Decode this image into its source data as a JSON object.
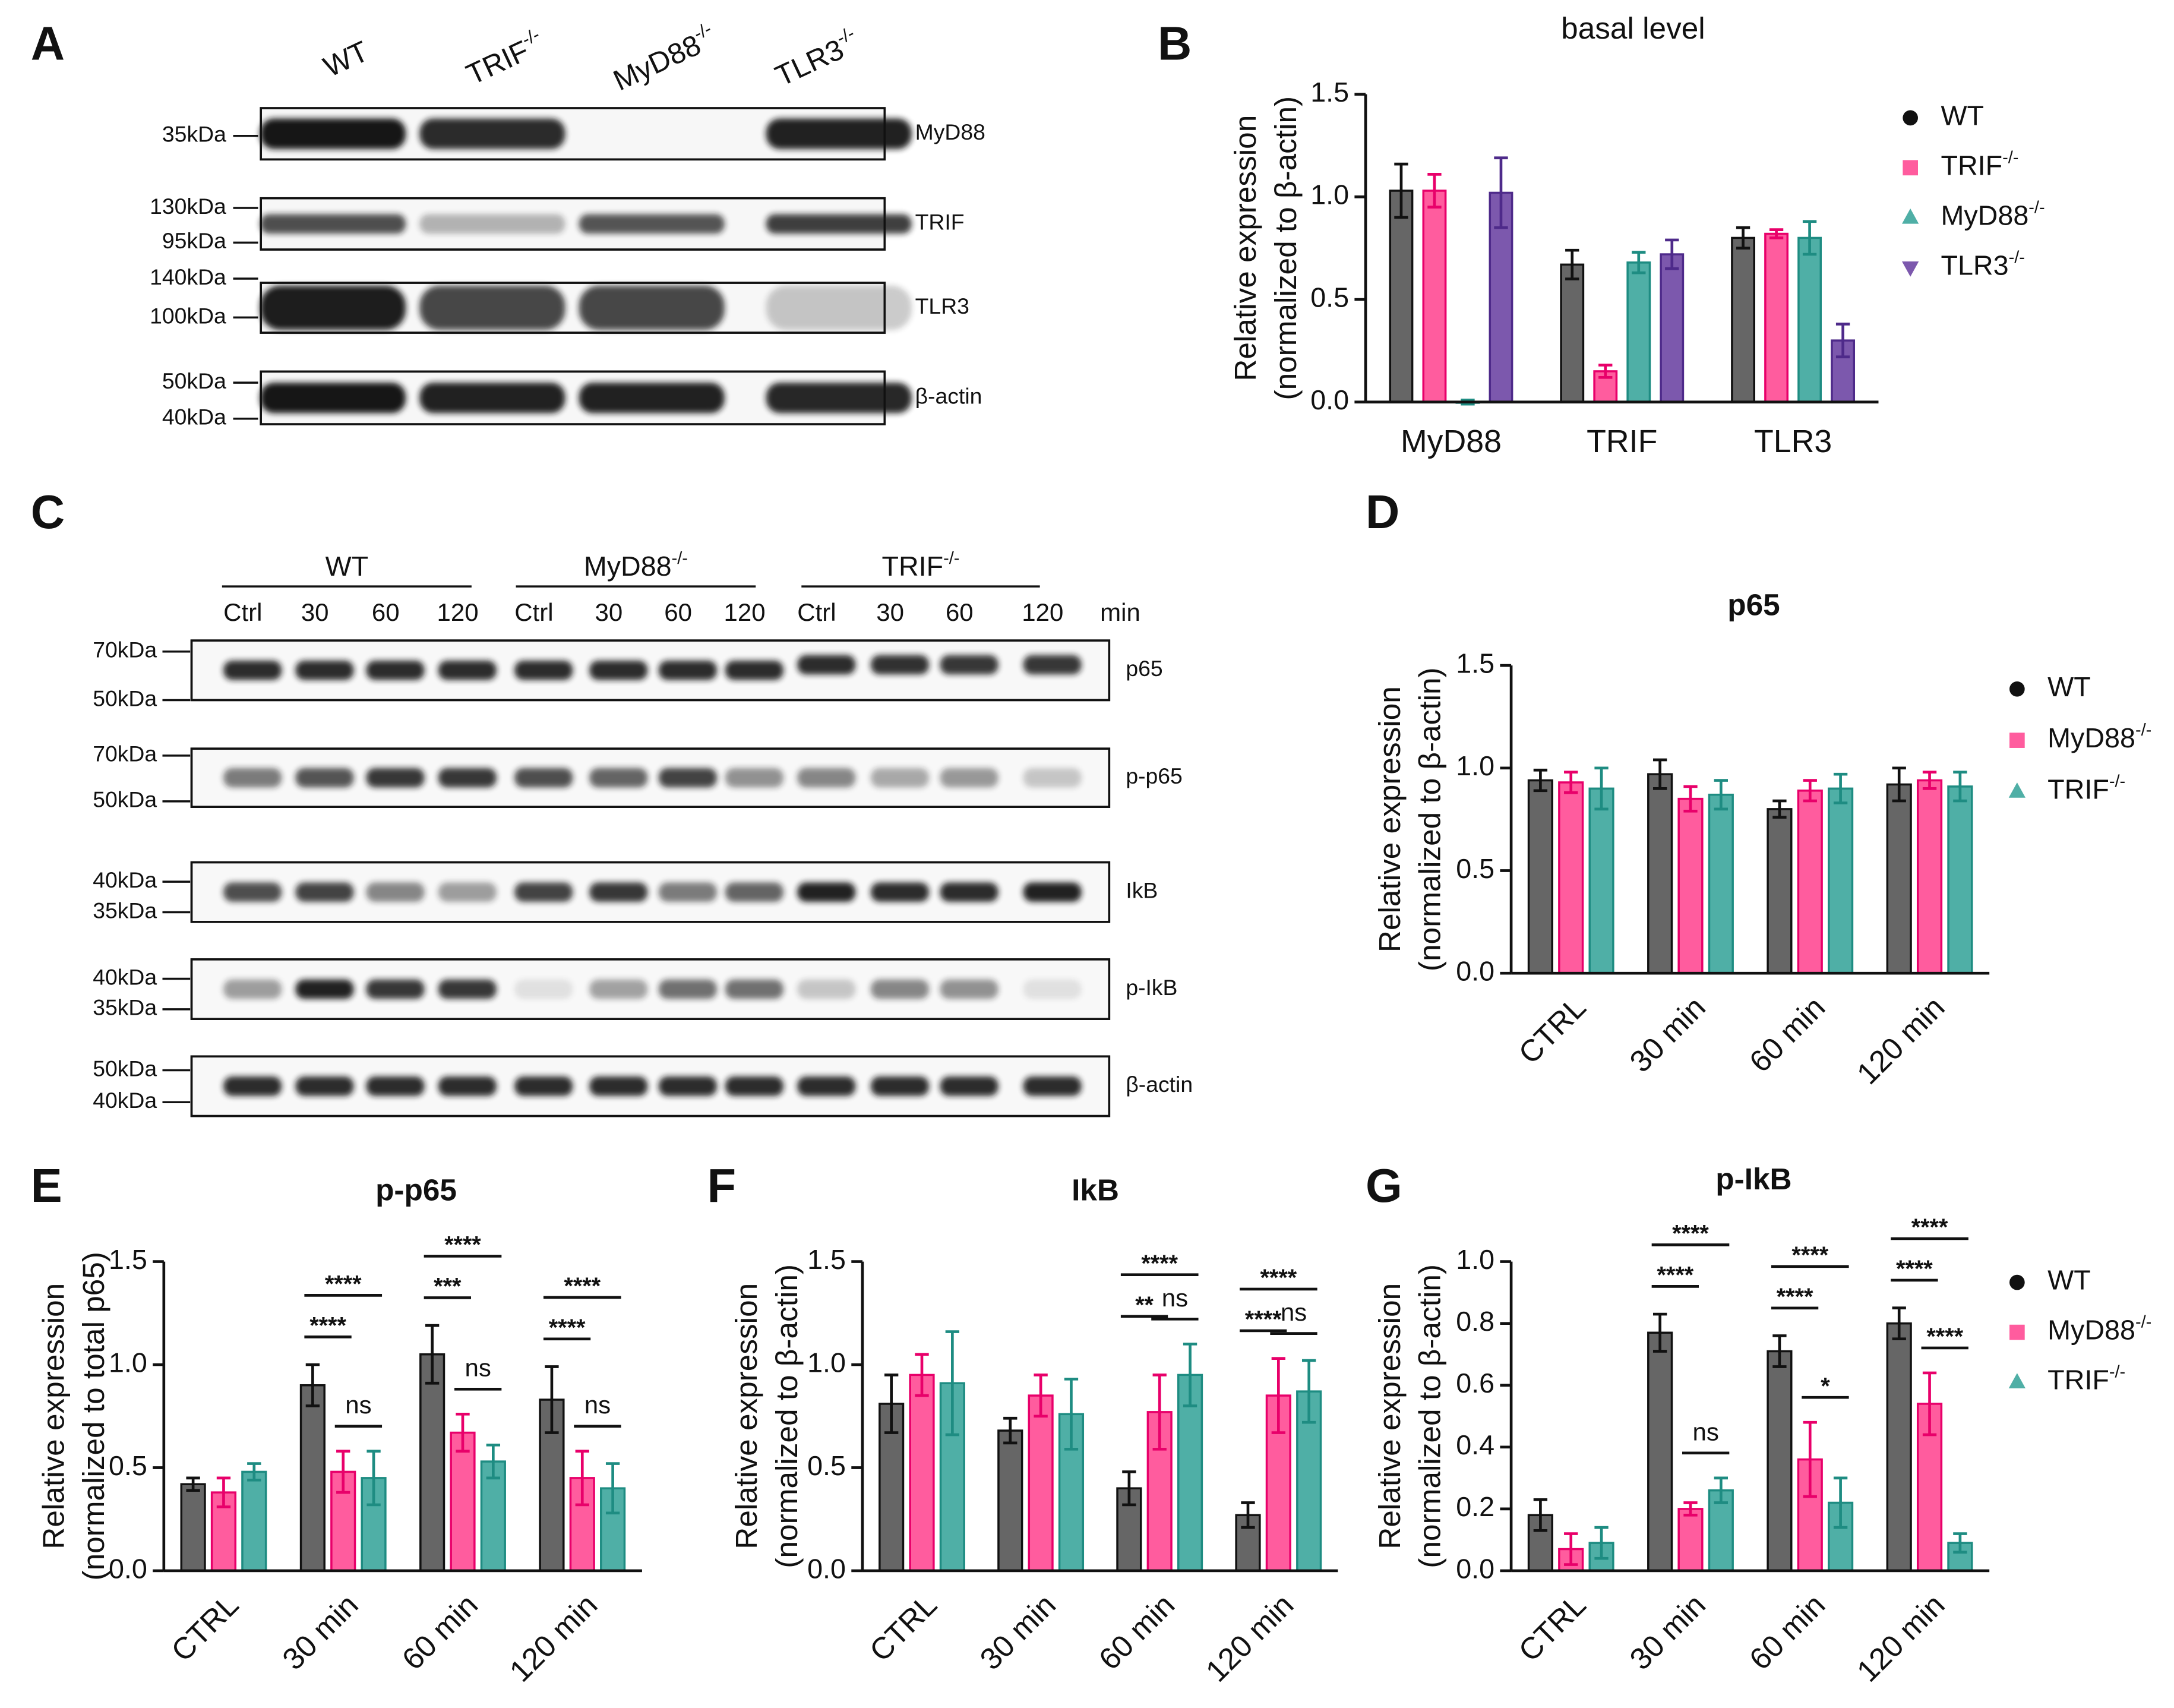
{
  "panel_labels": [
    "A",
    "B",
    "C",
    "D",
    "E",
    "F",
    "G"
  ],
  "blot_a": {
    "lanes": [
      {
        "name": "WT"
      },
      {
        "name": "TRIF",
        "sup": "-/-"
      },
      {
        "name": "MyD88",
        "sup": "-/-"
      },
      {
        "name": "TLR3",
        "sup": "-/-"
      }
    ],
    "rows": [
      {
        "label": "MyD88",
        "markers": [
          "35kDa"
        ]
      },
      {
        "label": "TRIF",
        "markers": [
          "130kDa",
          "95kDa"
        ]
      },
      {
        "label": "TLR3",
        "markers": [
          "140kDa",
          "100kDa"
        ]
      },
      {
        "label": "β-actin",
        "markers": [
          "50kDa",
          "40kDa"
        ]
      }
    ]
  },
  "blot_c": {
    "groups": [
      {
        "name": "WT"
      },
      {
        "name": "MyD88",
        "sup": "-/-"
      },
      {
        "name": "TRIF",
        "sup": "-/-"
      }
    ],
    "lanes": [
      "Ctrl",
      "30",
      "60",
      "120",
      "Ctrl",
      "30",
      "60",
      "120",
      "Ctrl",
      "30",
      "60",
      "120"
    ],
    "unit": "min",
    "rows": [
      {
        "label": "p65",
        "markers": [
          "70kDa",
          "50kDa"
        ]
      },
      {
        "label": "p-p65",
        "markers": [
          "70kDa",
          "50kDa"
        ]
      },
      {
        "label": "IkB",
        "markers": [
          "40kDa",
          "35kDa"
        ]
      },
      {
        "label": "p-IkB",
        "markers": [
          "40kDa",
          "35kDa"
        ]
      },
      {
        "label": "β-actin",
        "markers": [
          "50kDa",
          "40kDa"
        ]
      }
    ]
  },
  "chart_data": [
    {
      "type": "bar",
      "title": "basal level",
      "ylabel": [
        "Relative  expression",
        "(normalized to β-actin)"
      ],
      "categories": [
        "MyD88",
        "TRIF",
        "TLR3"
      ],
      "ylim": [
        0,
        1.5
      ],
      "yticks": [
        {
          "value": 0,
          "label": "0.0"
        },
        0.5,
        {
          "value": 1,
          "label": "1.0"
        },
        1.5
      ],
      "series": [
        {
          "name": "WT",
          "color": "#666666",
          "values": [
            1.03,
            0.67,
            0.8
          ],
          "errors": [
            0.13,
            0.07,
            0.05
          ]
        },
        {
          "name": "TRIF",
          "sup": "-/-",
          "color": "#ff5c9e",
          "values": [
            1.03,
            0.15,
            0.82
          ],
          "errors": [
            0.08,
            0.03,
            0.02
          ]
        },
        {
          "name": "MyD88",
          "sup": "-/-",
          "color": "#4fafa6",
          "values": [
            0.0,
            0.68,
            0.8
          ],
          "errors": [
            0.01,
            0.05,
            0.08
          ]
        },
        {
          "name": "TLR3",
          "sup": "-/-",
          "color": "#7c58ad",
          "values": [
            1.02,
            0.72,
            0.3
          ],
          "errors": [
            0.17,
            0.07,
            0.08
          ]
        }
      ]
    },
    {
      "type": "bar",
      "title": "p65",
      "ylabel": [
        "Relative  expression",
        "(normalized to β-actin)"
      ],
      "categories": [
        "CTRL",
        "30 min",
        "60 min",
        "120 min"
      ],
      "ylim": [
        0,
        1.5
      ],
      "yticks": [
        {
          "value": 0,
          "label": "0.0"
        },
        0.5,
        {
          "value": 1,
          "label": "1.0"
        },
        1.5
      ],
      "series": [
        {
          "name": "WT",
          "color": "#666666",
          "values": [
            0.94,
            0.97,
            0.8,
            0.92
          ],
          "errors": [
            0.05,
            0.07,
            0.04,
            0.08
          ]
        },
        {
          "name": "MyD88",
          "sup": "-/-",
          "color": "#ff5c9e",
          "values": [
            0.93,
            0.85,
            0.89,
            0.94
          ],
          "errors": [
            0.05,
            0.06,
            0.05,
            0.04
          ]
        },
        {
          "name": "TRIF",
          "sup": "-/-",
          "color": "#4fafa6",
          "values": [
            0.9,
            0.87,
            0.9,
            0.91
          ],
          "errors": [
            0.1,
            0.07,
            0.07,
            0.07
          ]
        }
      ]
    },
    {
      "type": "bar",
      "title": "p-p65",
      "ylabel": [
        "Relative  expression",
        "(normalized to total p65)"
      ],
      "categories": [
        "CTRL",
        "30 min",
        "60 min",
        "120 min"
      ],
      "ylim": [
        0,
        1.5
      ],
      "yticks": [
        {
          "value": 0,
          "label": "0.0"
        },
        0.5,
        {
          "value": 1,
          "label": "1.0"
        },
        1.5
      ],
      "series": [
        {
          "name": "WT",
          "color": "#666666",
          "values": [
            0.42,
            0.9,
            1.05,
            0.83
          ],
          "errors": [
            0.03,
            0.1,
            0.14,
            0.16
          ]
        },
        {
          "name": "MyD88",
          "sup": "-/-",
          "color": "#ff5c9e",
          "values": [
            0.38,
            0.48,
            0.67,
            0.45
          ],
          "errors": [
            0.07,
            0.1,
            0.09,
            0.13
          ]
        },
        {
          "name": "TRIF",
          "sup": "-/-",
          "color": "#4fafa6",
          "values": [
            0.48,
            0.45,
            0.53,
            0.4
          ],
          "errors": [
            0.04,
            0.13,
            0.08,
            0.12
          ]
        }
      ],
      "annotations": [
        {
          "label": "****",
          "category": 1,
          "pair": [
            0,
            1
          ]
        },
        {
          "label": "****",
          "category": 1,
          "pair": [
            0,
            2
          ]
        },
        {
          "label": "ns",
          "category": 1,
          "pair": [
            1,
            2
          ]
        },
        {
          "label": "***",
          "category": 2,
          "pair": [
            0,
            1
          ]
        },
        {
          "label": "****",
          "category": 2,
          "pair": [
            0,
            2
          ]
        },
        {
          "label": "ns",
          "category": 2,
          "pair": [
            1,
            2
          ]
        },
        {
          "label": "****",
          "category": 3,
          "pair": [
            0,
            1
          ]
        },
        {
          "label": "****",
          "category": 3,
          "pair": [
            0,
            2
          ]
        },
        {
          "label": "ns",
          "category": 3,
          "pair": [
            1,
            2
          ]
        }
      ]
    },
    {
      "type": "bar",
      "title": "IkB",
      "ylabel": [
        "Relative  expression",
        "(normalized to β-actin)"
      ],
      "categories": [
        "CTRL",
        "30 min",
        "60 min",
        "120 min"
      ],
      "ylim": [
        0,
        1.5
      ],
      "yticks": [
        {
          "value": 0,
          "label": "0.0"
        },
        0.5,
        {
          "value": 1,
          "label": "1.0"
        },
        1.5
      ],
      "series": [
        {
          "name": "WT",
          "color": "#666666",
          "values": [
            0.81,
            0.68,
            0.4,
            0.27
          ],
          "errors": [
            0.14,
            0.06,
            0.08,
            0.06
          ]
        },
        {
          "name": "MyD88",
          "sup": "-/-",
          "color": "#ff5c9e",
          "values": [
            0.95,
            0.85,
            0.77,
            0.85
          ],
          "errors": [
            0.1,
            0.1,
            0.18,
            0.18
          ]
        },
        {
          "name": "TRIF",
          "sup": "-/-",
          "color": "#4fafa6",
          "values": [
            0.91,
            0.76,
            0.95,
            0.87
          ],
          "errors": [
            0.25,
            0.17,
            0.15,
            0.15
          ]
        }
      ],
      "annotations": [
        {
          "label": "**",
          "category": 2,
          "pair": [
            0,
            1
          ]
        },
        {
          "label": "****",
          "category": 2,
          "pair": [
            0,
            2
          ]
        },
        {
          "label": "ns",
          "category": 2,
          "pair": [
            1,
            2
          ]
        },
        {
          "label": "****",
          "category": 3,
          "pair": [
            0,
            1
          ]
        },
        {
          "label": "****",
          "category": 3,
          "pair": [
            0,
            2
          ]
        },
        {
          "label": "ns",
          "category": 3,
          "pair": [
            1,
            2
          ]
        }
      ]
    },
    {
      "type": "bar",
      "title": "p-IkB",
      "ylabel": [
        "Relative  expression",
        "(normalized to β-actin)"
      ],
      "categories": [
        "CTRL",
        "30 min",
        "60 min",
        "120 min"
      ],
      "ylim": [
        0,
        1
      ],
      "yticks": [
        {
          "value": 0,
          "label": "0.0"
        },
        0.2,
        0.4,
        0.6,
        0.8,
        {
          "value": 1,
          "label": "1.0"
        }
      ],
      "series": [
        {
          "name": "WT",
          "color": "#666666",
          "values": [
            0.18,
            0.77,
            0.71,
            0.8
          ],
          "errors": [
            0.05,
            0.06,
            0.05,
            0.05
          ]
        },
        {
          "name": "MyD88",
          "sup": "-/-",
          "color": "#ff5c9e",
          "values": [
            0.07,
            0.2,
            0.36,
            0.54
          ],
          "errors": [
            0.05,
            0.02,
            0.12,
            0.1
          ]
        },
        {
          "name": "TRIF",
          "sup": "-/-",
          "color": "#4fafa6",
          "values": [
            0.09,
            0.26,
            0.22,
            0.09
          ],
          "errors": [
            0.05,
            0.04,
            0.08,
            0.03
          ]
        }
      ],
      "annotations": [
        {
          "label": "****",
          "category": 1,
          "pair": [
            0,
            1
          ]
        },
        {
          "label": "****",
          "category": 1,
          "pair": [
            0,
            2
          ]
        },
        {
          "label": "ns",
          "category": 1,
          "pair": [
            1,
            2
          ]
        },
        {
          "label": "****",
          "category": 2,
          "pair": [
            0,
            1
          ]
        },
        {
          "label": "****",
          "category": 2,
          "pair": [
            0,
            2
          ]
        },
        {
          "label": "*",
          "category": 2,
          "pair": [
            1,
            2
          ]
        },
        {
          "label": "****",
          "category": 3,
          "pair": [
            0,
            1
          ]
        },
        {
          "label": "****",
          "category": 3,
          "pair": [
            0,
            2
          ]
        },
        {
          "label": "****",
          "category": 3,
          "pair": [
            1,
            2
          ]
        }
      ]
    }
  ]
}
